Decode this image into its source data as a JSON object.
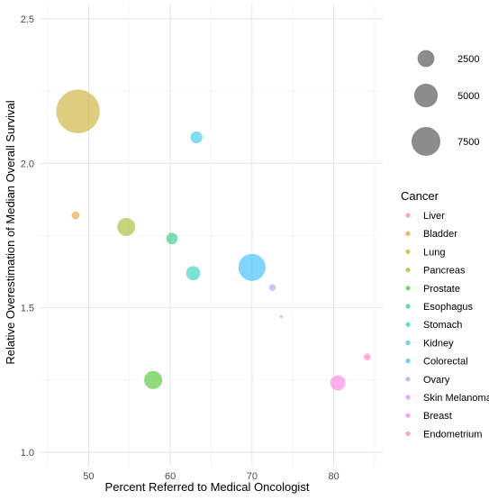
{
  "chart_data": {
    "type": "scatter",
    "title": "",
    "xlabel": "Percent Referred to Medical Oncologist",
    "ylabel": "Relative Overestimation of Median Overall Survival",
    "xlim": [
      44,
      86
    ],
    "ylim": [
      0.95,
      2.55
    ],
    "x_ticks": [
      50,
      60,
      70,
      80
    ],
    "y_ticks": [
      1.0,
      1.5,
      2.0,
      2.5
    ],
    "x_tick_labels": [
      "50",
      "60",
      "70",
      "80"
    ],
    "y_tick_labels": [
      "1.0",
      "1.5",
      "2.0",
      "2.5"
    ],
    "grid": true,
    "size_legend": {
      "values": [
        2500,
        5000,
        7500
      ],
      "labels": [
        "2500",
        "5000",
        "7500"
      ]
    },
    "color_legend": {
      "title": "Cancer",
      "placement": "right"
    },
    "series": [
      {
        "name": "Liver",
        "color": "#F8766D",
        "x": 48.0,
        "y": 1.82,
        "size": 0
      },
      {
        "name": "Bladder",
        "color": "#E18A00",
        "x": 48.4,
        "y": 1.82,
        "size": 600
      },
      {
        "name": "Lung",
        "color": "#BE9C00",
        "x": 48.7,
        "y": 2.18,
        "size": 18000
      },
      {
        "name": "Pancreas",
        "color": "#8CAB00",
        "x": 54.6,
        "y": 1.78,
        "size": 3100
      },
      {
        "name": "Prostate",
        "color": "#24B700",
        "x": 57.9,
        "y": 1.25,
        "size": 3100
      },
      {
        "name": "Esophagus",
        "color": "#00BE70",
        "x": 60.2,
        "y": 1.74,
        "size": 1250
      },
      {
        "name": "Stomach",
        "color": "#00C1AB",
        "x": 62.8,
        "y": 1.62,
        "size": 1900
      },
      {
        "name": "Kidney",
        "color": "#00BBDA",
        "x": 63.2,
        "y": 2.09,
        "size": 1350
      },
      {
        "name": "Colorectal",
        "color": "#00ACFC",
        "x": 70.0,
        "y": 1.64,
        "size": 7000
      },
      {
        "name": "Ovary",
        "color": "#8B93FF",
        "x": 72.5,
        "y": 1.57,
        "size": 450
      },
      {
        "name": "Skin Melanoma",
        "color": "#D575FE",
        "x": 73.6,
        "y": 1.47,
        "size": 90
      },
      {
        "name": "Breast",
        "color": "#F962DD",
        "x": 80.5,
        "y": 1.24,
        "size": 2200
      },
      {
        "name": "Endometrium",
        "color": "#FF65AC",
        "x": 84.1,
        "y": 1.33,
        "size": 450
      }
    ]
  }
}
